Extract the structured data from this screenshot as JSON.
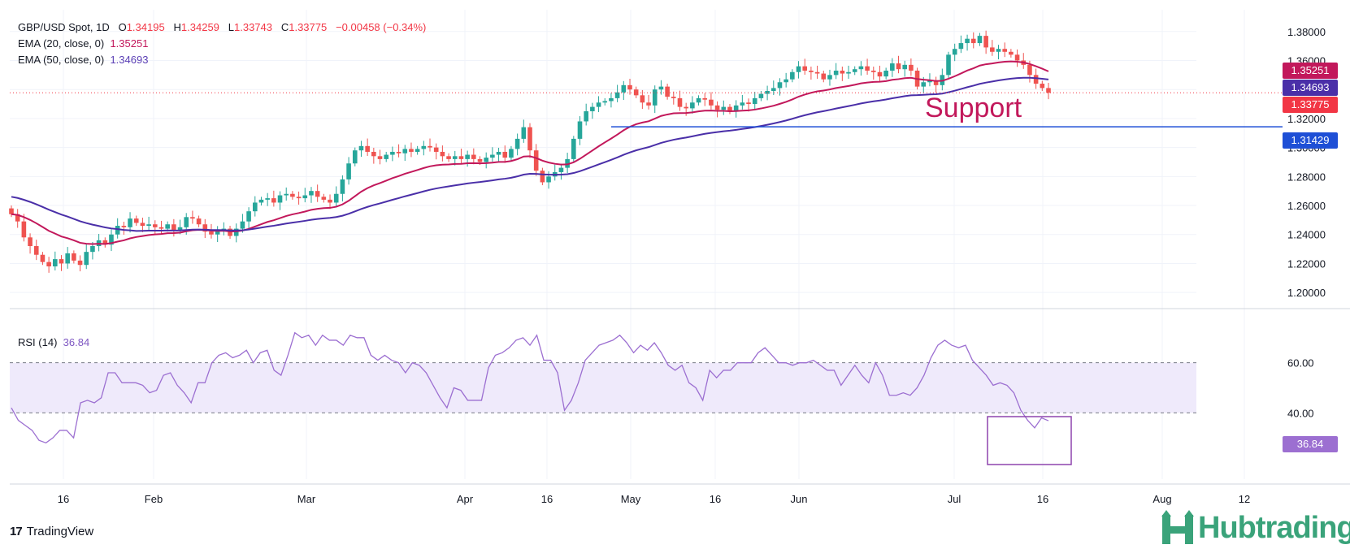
{
  "header": {
    "symbol": "GBP/USD Spot, 1D",
    "o_label": "O",
    "o_value": "1.34195",
    "h_label": "H",
    "h_value": "1.34259",
    "l_label": "L",
    "l_value": "1.33743",
    "c_label": "C",
    "c_value": "1.33775",
    "change": "−0.00458 (−0.34%)"
  },
  "ema20": {
    "label": "EMA (20, close, 0)",
    "value": "1.35251",
    "color": "#c2185b"
  },
  "ema50": {
    "label": "EMA (50, close, 0)",
    "value": "1.34693",
    "color": "#4a2fa8"
  },
  "rsi": {
    "label": "RSI (14)",
    "value": "36.84",
    "color": "#9c6fd1"
  },
  "price_tags": {
    "ema20": "1.35251",
    "ema50": "1.34693",
    "close": "1.33775",
    "support": "1.31429"
  },
  "annotation": {
    "support_text": "Support"
  },
  "footer": {
    "tradingview": "TradingView",
    "brand": "Hubtrading"
  },
  "colors": {
    "up": "#26a69a",
    "down": "#ef5350",
    "ema20": "#c2185b",
    "ema50": "#4a2fa8",
    "support": "#1e4fd6",
    "rsi_line": "#9c6fd1",
    "rsi_band": "#efeafb",
    "box": "#8e44ad"
  },
  "chart_data": [
    {
      "type": "candlestick",
      "title": "GBP/USD Spot, 1D",
      "ylim": [
        1.19,
        1.395
      ],
      "y_ticks": [
        "1.38000",
        "1.36000",
        "1.34000",
        "1.32000",
        "1.30000",
        "1.28000",
        "1.26000",
        "1.24000",
        "1.22000",
        "1.20000"
      ],
      "x_ticks": [
        "16",
        "Feb",
        "Mar",
        "Apr",
        "16",
        "May",
        "16",
        "Jun",
        "Jul",
        "16",
        "Aug",
        "12"
      ],
      "series": [
        {
          "name": "EMA (20, close, 0)",
          "last": 1.35251
        },
        {
          "name": "EMA (50, close, 0)",
          "last": 1.34693
        }
      ],
      "last_close": 1.33775,
      "support_level": 1.31429,
      "candles_close_path": [
        1.254,
        1.249,
        1.238,
        1.232,
        1.226,
        1.221,
        1.218,
        1.223,
        1.22,
        1.227,
        1.222,
        1.219,
        1.228,
        1.232,
        1.236,
        1.233,
        1.24,
        1.246,
        1.245,
        1.251,
        1.248,
        1.246,
        1.247,
        1.245,
        1.244,
        1.247,
        1.243,
        1.245,
        1.252,
        1.251,
        1.247,
        1.242,
        1.24,
        1.243,
        1.244,
        1.239,
        1.244,
        1.249,
        1.256,
        1.262,
        1.264,
        1.265,
        1.262,
        1.267,
        1.268,
        1.266,
        1.265,
        1.267,
        1.27,
        1.266,
        1.264,
        1.262,
        1.268,
        1.278,
        1.289,
        1.298,
        1.301,
        1.297,
        1.294,
        1.292,
        1.295,
        1.297,
        1.296,
        1.299,
        1.297,
        1.299,
        1.301,
        1.3,
        1.297,
        1.294,
        1.292,
        1.294,
        1.292,
        1.295,
        1.292,
        1.29,
        1.293,
        1.295,
        1.297,
        1.293,
        1.299,
        1.306,
        1.314,
        1.298,
        1.284,
        1.276,
        1.28,
        1.283,
        1.286,
        1.292,
        1.306,
        1.318,
        1.325,
        1.328,
        1.331,
        1.332,
        1.334,
        1.338,
        1.343,
        1.34,
        1.336,
        1.331,
        1.329,
        1.34,
        1.342,
        1.335,
        1.334,
        1.328,
        1.327,
        1.331,
        1.334,
        1.333,
        1.329,
        1.326,
        1.328,
        1.325,
        1.329,
        1.331,
        1.33,
        1.334,
        1.337,
        1.339,
        1.341,
        1.345,
        1.347,
        1.352,
        1.356,
        1.353,
        1.352,
        1.351,
        1.347,
        1.35,
        1.353,
        1.351,
        1.352,
        1.354,
        1.356,
        1.353,
        1.352,
        1.349,
        1.353,
        1.358,
        1.354,
        1.357,
        1.353,
        1.342,
        1.345,
        1.346,
        1.343,
        1.35,
        1.364,
        1.368,
        1.372,
        1.375,
        1.372,
        1.377,
        1.369,
        1.366,
        1.368,
        1.366,
        1.364,
        1.36,
        1.357,
        1.35,
        1.344,
        1.341,
        1.33775
      ]
    },
    {
      "type": "line",
      "title": "RSI (14)",
      "ylim": [
        20,
        80
      ],
      "levels": [
        60,
        40
      ],
      "y_ticks": [
        "60.00",
        "40.00"
      ],
      "last": 36.84,
      "values": [
        42,
        37,
        35,
        33,
        29,
        28,
        30,
        33,
        33,
        30,
        44,
        45,
        44,
        46,
        56,
        56,
        52,
        52,
        52,
        51,
        48,
        49,
        55,
        56,
        51,
        48,
        44,
        52,
        52,
        60,
        63,
        64,
        62,
        63,
        65,
        60,
        64,
        65,
        57,
        55,
        63,
        72,
        70,
        71,
        67,
        71,
        69,
        69,
        67,
        71,
        70,
        70,
        63,
        61,
        63,
        61,
        60,
        56,
        60,
        59,
        56,
        51,
        46,
        42,
        50,
        49,
        45,
        45,
        45,
        58,
        63,
        64,
        66,
        69,
        70,
        67,
        71,
        61,
        61,
        56,
        41,
        45,
        52,
        61,
        64,
        67,
        68,
        69,
        71,
        68,
        64,
        67,
        65,
        68,
        64,
        59,
        57,
        59,
        52,
        50,
        45,
        57,
        54,
        57,
        57,
        60,
        60,
        60,
        64,
        66,
        63,
        60,
        60,
        59,
        60,
        60,
        61,
        59,
        57,
        57,
        51,
        55,
        59,
        55,
        52,
        60,
        55,
        47,
        47,
        48,
        47,
        50,
        55,
        62,
        67,
        69,
        67,
        66,
        67,
        61,
        58,
        55,
        51,
        52,
        51,
        48,
        41,
        37,
        34,
        38,
        36.84
      ]
    }
  ]
}
